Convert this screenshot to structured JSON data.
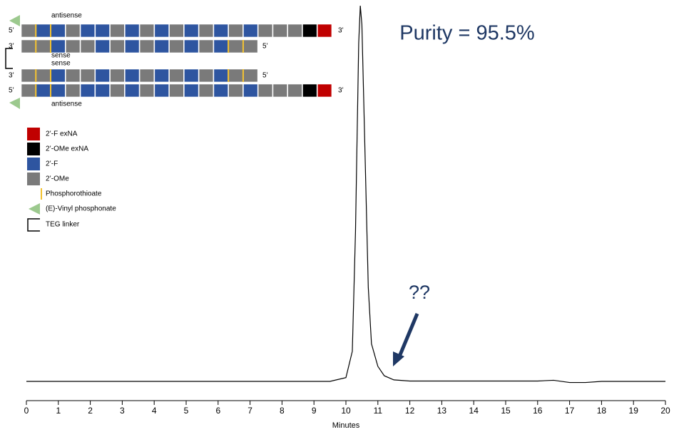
{
  "chart_data": {
    "type": "line",
    "xlabel": "Minutes",
    "x": [
      0,
      9.5,
      10.0,
      10.2,
      10.3,
      10.4,
      10.45,
      10.5,
      10.6,
      10.7,
      10.8,
      11.0,
      11.2,
      11.5,
      12,
      16,
      16.5,
      17,
      17.5,
      18,
      20
    ],
    "values": [
      0,
      0,
      1,
      8,
      40,
      90,
      100,
      95,
      60,
      25,
      10,
      4,
      1.5,
      0.4,
      0.1,
      0.1,
      0.3,
      -0.3,
      -0.3,
      0,
      0
    ],
    "color": "#000000",
    "xlim": [
      0,
      20
    ],
    "xticks": [
      0,
      1,
      2,
      3,
      4,
      5,
      6,
      7,
      8,
      9,
      10,
      11,
      12,
      13,
      14,
      15,
      16,
      17,
      18,
      19,
      20
    ],
    "ylim": [
      0,
      100
    ],
    "annotations": [
      "Purity = 95.5%",
      "??"
    ]
  },
  "diagram": {
    "strand_labels": [
      "antisense",
      "sense",
      "sense",
      "antisense"
    ],
    "end_labels": [
      "5’",
      "3’",
      "3’",
      "5’",
      "3’",
      "5’",
      "5’",
      "3’"
    ],
    "legend": [
      "2’-F exNA",
      "2’-OMe exNA",
      "2’-F",
      "2’-OMe",
      "Phosphorothioate",
      "(E)-Vinyl phosphonate",
      "TEG linker"
    ]
  }
}
